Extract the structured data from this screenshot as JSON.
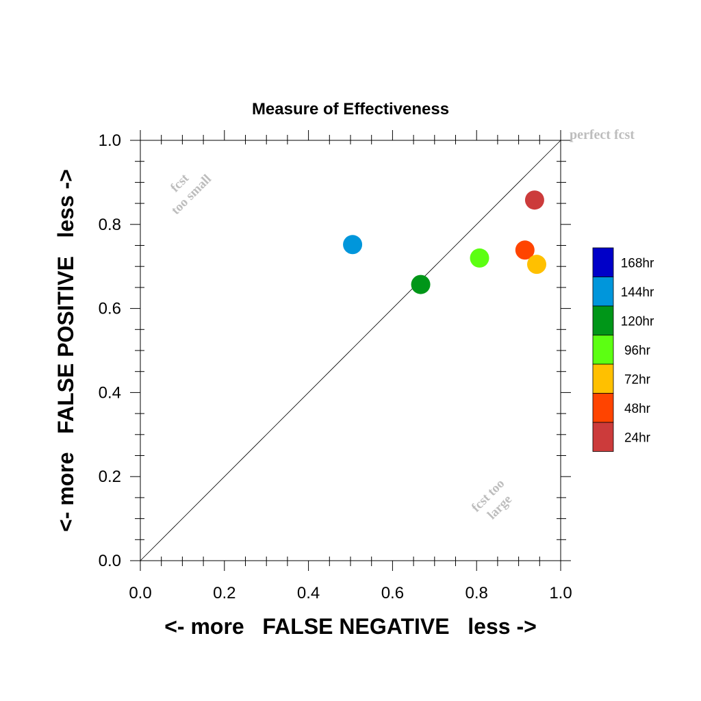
{
  "chart_data": {
    "type": "scatter",
    "title": "Measure of Effectiveness",
    "xlabel": "<- more   FALSE NEGATIVE   less ->",
    "ylabel": "<- more   FALSE POSITIVE   less ->",
    "xlim": [
      0.0,
      1.0
    ],
    "ylim": [
      0.0,
      1.0
    ],
    "xticks": [
      "0.0",
      "0.2",
      "0.4",
      "0.6",
      "0.8",
      "1.0"
    ],
    "yticks": [
      "0.0",
      "0.2",
      "0.4",
      "0.6",
      "0.8",
      "1.0"
    ],
    "grid": false,
    "reference_line": "diagonal y = x",
    "annotations": {
      "perfect": "perfect fcst",
      "too_small_1": "fcst",
      "too_small_2": "too small",
      "too_large_1": "fcst too",
      "too_large_2": "large"
    },
    "series": [
      {
        "name": "24hr",
        "color": "#cc3b3b",
        "x": 0.938,
        "y": 0.858
      },
      {
        "name": "48hr",
        "color": "#ff4400",
        "x": 0.915,
        "y": 0.739
      },
      {
        "name": "72hr",
        "color": "#ffc000",
        "x": 0.943,
        "y": 0.705
      },
      {
        "name": "96hr",
        "color": "#5cff12",
        "x": 0.807,
        "y": 0.72
      },
      {
        "name": "120hr",
        "color": "#009618",
        "x": 0.667,
        "y": 0.657
      },
      {
        "name": "144hr",
        "color": "#0096db",
        "x": 0.505,
        "y": 0.752
      }
    ],
    "legend": {
      "placement": "right",
      "entries": [
        {
          "label": "168hr",
          "color": "#0000c8"
        },
        {
          "label": "144hr",
          "color": "#0096db"
        },
        {
          "label": "120hr",
          "color": "#009618"
        },
        {
          "label": "96hr",
          "color": "#5cff12"
        },
        {
          "label": "72hr",
          "color": "#ffc000"
        },
        {
          "label": "48hr",
          "color": "#ff4400"
        },
        {
          "label": "24hr",
          "color": "#cc3b3b"
        }
      ]
    }
  }
}
